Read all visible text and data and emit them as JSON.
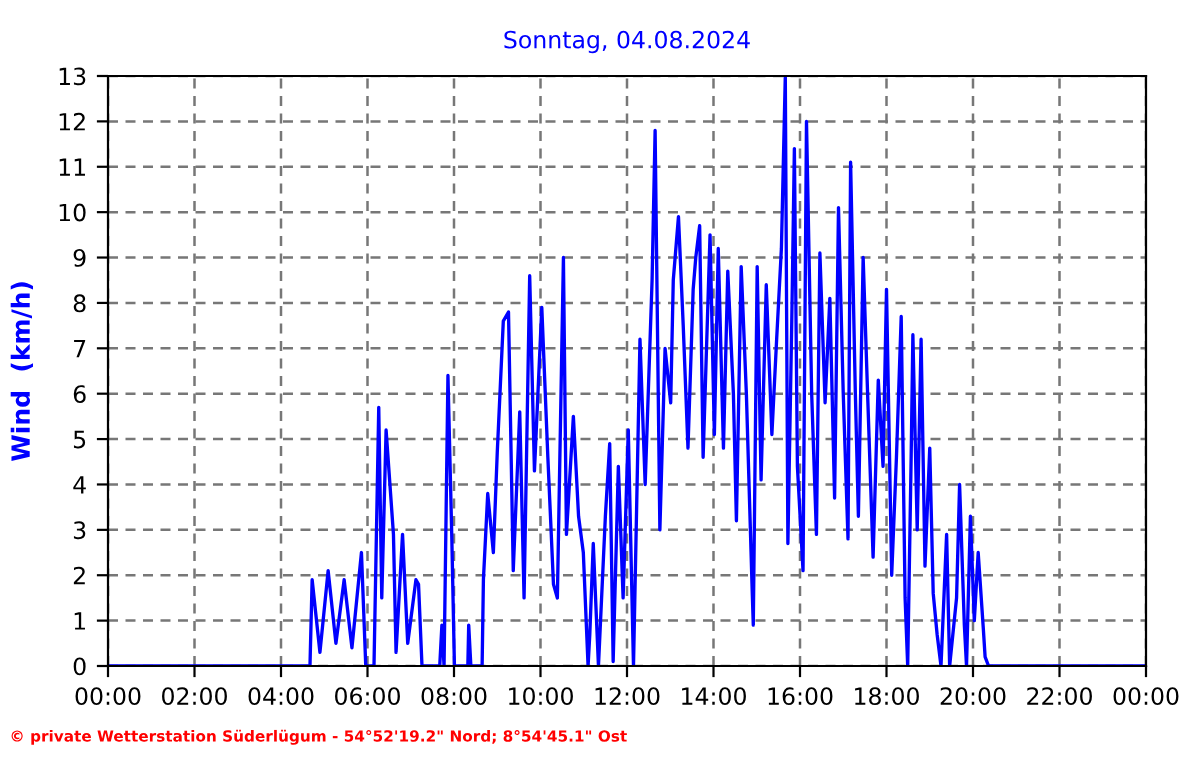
{
  "chart_data": {
    "type": "line",
    "title": "Sonntag, 04.08.2024",
    "ylabel": "Wind  (km/h)",
    "annotations": [
      "© private Wetterstation Süderlügum - 54°52'19.2\" Nord; 8°54'45.1\" Ost"
    ],
    "x": [
      0,
      4.67,
      4.72,
      4.9,
      5.09,
      5.27,
      5.46,
      5.64,
      5.86,
      5.96,
      6.15,
      6.26,
      6.33,
      6.43,
      6.6,
      6.66,
      6.81,
      6.93,
      7.12,
      7.18,
      7.26,
      7.67,
      7.72,
      7.77,
      7.86,
      7.95,
      8.01,
      8.32,
      8.34,
      8.39,
      8.65,
      8.68,
      8.78,
      8.91,
      9.0,
      9.14,
      9.26,
      9.37,
      9.52,
      9.62,
      9.75,
      9.86,
      10.03,
      10.17,
      10.3,
      10.39,
      10.53,
      10.6,
      10.76,
      10.88,
      10.99,
      11.1,
      11.14,
      11.22,
      11.34,
      11.5,
      11.6,
      11.68,
      11.8,
      11.91,
      12.03,
      12.15,
      12.3,
      12.42,
      12.58,
      12.65,
      12.76,
      12.88,
      13.01,
      13.07,
      13.19,
      13.3,
      13.41,
      13.53,
      13.59,
      13.68,
      13.76,
      13.92,
      14.02,
      14.11,
      14.23,
      14.33,
      14.46,
      14.53,
      14.64,
      14.76,
      14.89,
      14.92,
      15.01,
      15.1,
      15.22,
      15.35,
      15.46,
      15.57,
      15.66,
      15.72,
      15.81,
      15.87,
      15.94,
      16.07,
      16.15,
      16.27,
      16.38,
      16.46,
      16.58,
      16.69,
      16.8,
      16.89,
      17.0,
      17.11,
      17.17,
      17.28,
      17.35,
      17.46,
      17.57,
      17.69,
      17.81,
      17.92,
      18.0,
      18.12,
      18.23,
      18.34,
      18.43,
      18.49,
      18.57,
      18.61,
      18.71,
      18.8,
      18.89,
      19.0,
      19.08,
      19.17,
      19.26,
      19.39,
      19.46,
      19.62,
      19.69,
      19.8,
      19.85,
      19.94,
      20.03,
      20.12,
      20.24,
      20.28,
      20.36,
      24
    ],
    "series": [
      {
        "color": "#0000ff",
        "values": [
          0,
          0,
          1.9,
          0.3,
          2.1,
          0.5,
          1.9,
          0.4,
          2.5,
          0,
          0,
          5.7,
          1.5,
          5.2,
          2.9,
          0.3,
          2.9,
          0.5,
          1.9,
          1.8,
          0,
          0,
          0.9,
          0,
          6.4,
          2.8,
          0,
          0,
          0.9,
          0,
          0,
          1.9,
          3.8,
          2.5,
          4.7,
          7.6,
          7.8,
          2.1,
          5.6,
          1.5,
          8.6,
          4.3,
          7.9,
          4.6,
          1.8,
          1.5,
          9.0,
          2.9,
          5.5,
          3.3,
          2.5,
          0,
          0.7,
          2.7,
          0,
          3.3,
          4.9,
          0.1,
          4.4,
          1.5,
          5.2,
          0,
          7.2,
          4.0,
          8.5,
          11.8,
          3.0,
          7.0,
          5.8,
          8.5,
          9.9,
          7.5,
          4.8,
          8.3,
          9.0,
          9.7,
          4.6,
          9.5,
          5.1,
          9.2,
          4.8,
          8.7,
          6.0,
          3.2,
          8.8,
          6.0,
          1.8,
          0.9,
          8.8,
          4.1,
          8.4,
          5.1,
          7.2,
          9.2,
          13.0,
          2.7,
          7.6,
          11.4,
          4.4,
          2.1,
          12.0,
          6.0,
          2.9,
          9.1,
          5.8,
          8.1,
          3.7,
          10.1,
          6.0,
          2.8,
          11.1,
          6.0,
          3.3,
          9.0,
          5.8,
          2.4,
          6.3,
          4.4,
          8.3,
          2.0,
          4.6,
          7.7,
          1.5,
          0,
          4.6,
          7.3,
          3.0,
          7.2,
          2.2,
          4.8,
          1.6,
          0.7,
          0,
          2.9,
          0,
          1.5,
          4.0,
          0.9,
          0,
          3.3,
          1.0,
          2.5,
          0.8,
          0.2,
          0,
          0
        ]
      }
    ],
    "xlim": [
      0,
      24
    ],
    "xticks": [
      {
        "value": 0,
        "label": "00:00"
      },
      {
        "value": 2,
        "label": "02:00"
      },
      {
        "value": 4,
        "label": "04:00"
      },
      {
        "value": 6,
        "label": "06:00"
      },
      {
        "value": 8,
        "label": "08:00"
      },
      {
        "value": 10,
        "label": "10:00"
      },
      {
        "value": 12,
        "label": "12:00"
      },
      {
        "value": 14,
        "label": "14:00"
      },
      {
        "value": 16,
        "label": "16:00"
      },
      {
        "value": 18,
        "label": "18:00"
      },
      {
        "value": 20,
        "label": "20:00"
      },
      {
        "value": 22,
        "label": "22:00"
      },
      {
        "value": 24,
        "label": "00:00"
      }
    ],
    "ylim": [
      0,
      13
    ],
    "yticks": [
      0,
      1,
      2,
      3,
      4,
      5,
      6,
      7,
      8,
      9,
      10,
      11,
      12,
      13
    ],
    "grid": true,
    "marker": "none",
    "line_style": "solid"
  }
}
